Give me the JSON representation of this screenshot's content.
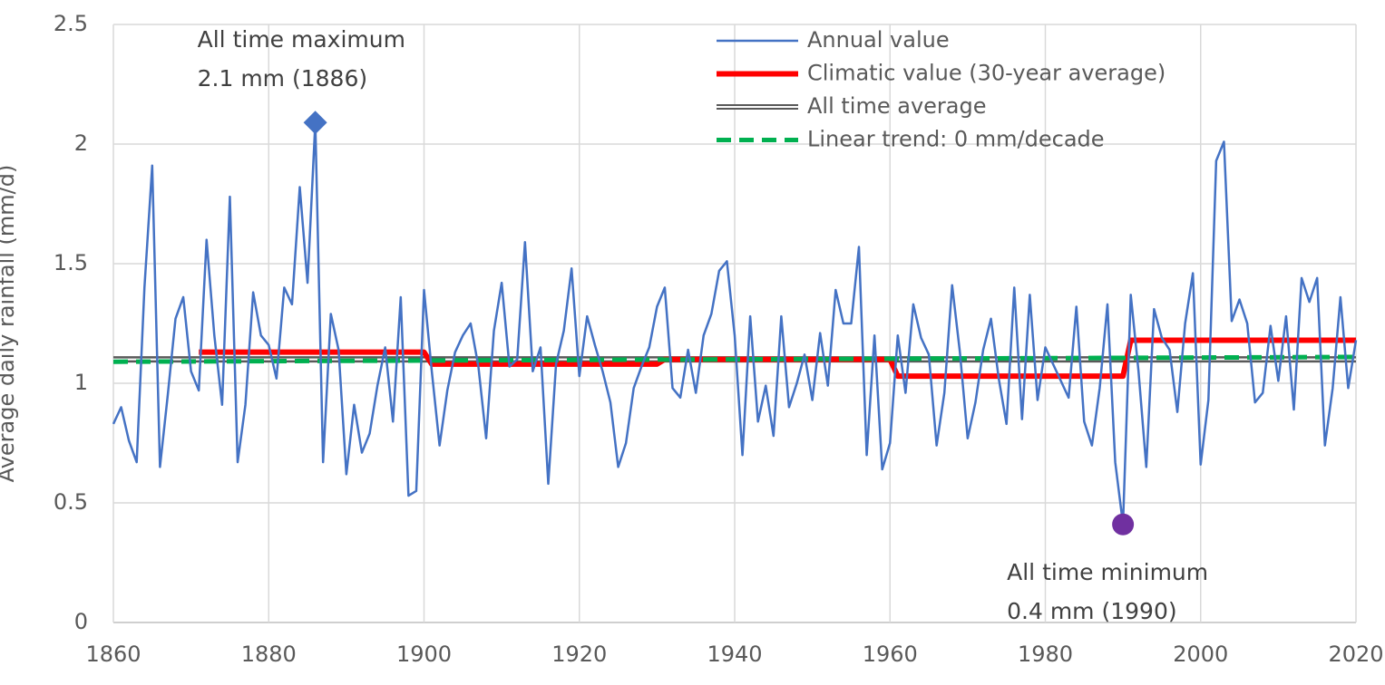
{
  "chart_data": {
    "type": "line",
    "y_label": "Average daily rainfall (mm/d)",
    "x": [
      1860,
      1861,
      1862,
      1863,
      1864,
      1865,
      1866,
      1867,
      1868,
      1869,
      1870,
      1871,
      1872,
      1873,
      1874,
      1875,
      1876,
      1877,
      1878,
      1879,
      1880,
      1881,
      1882,
      1883,
      1884,
      1885,
      1886,
      1887,
      1888,
      1889,
      1890,
      1891,
      1892,
      1893,
      1894,
      1895,
      1896,
      1897,
      1898,
      1899,
      1900,
      1901,
      1902,
      1903,
      1904,
      1905,
      1906,
      1907,
      1908,
      1909,
      1910,
      1911,
      1912,
      1913,
      1914,
      1915,
      1916,
      1917,
      1918,
      1919,
      1920,
      1921,
      1922,
      1923,
      1924,
      1925,
      1926,
      1927,
      1928,
      1929,
      1930,
      1931,
      1932,
      1933,
      1934,
      1935,
      1936,
      1937,
      1938,
      1939,
      1940,
      1941,
      1942,
      1943,
      1944,
      1945,
      1946,
      1947,
      1948,
      1949,
      1950,
      1951,
      1952,
      1953,
      1954,
      1955,
      1956,
      1957,
      1958,
      1959,
      1960,
      1961,
      1962,
      1963,
      1964,
      1965,
      1966,
      1967,
      1968,
      1969,
      1970,
      1971,
      1972,
      1973,
      1974,
      1975,
      1976,
      1977,
      1978,
      1979,
      1980,
      1981,
      1982,
      1983,
      1984,
      1985,
      1986,
      1987,
      1988,
      1989,
      1990,
      1991,
      1992,
      1993,
      1994,
      1995,
      1996,
      1997,
      1998,
      1999,
      2000,
      2001,
      2002,
      2003,
      2004,
      2005,
      2006,
      2007,
      2008,
      2009,
      2010,
      2011,
      2012,
      2013,
      2014,
      2015,
      2016,
      2017,
      2018,
      2019,
      2020
    ],
    "series": [
      {
        "name": "Annual value",
        "color": "#4472c4",
        "width": 2.5,
        "values": [
          0.83,
          0.9,
          0.76,
          0.67,
          1.4,
          1.91,
          0.65,
          0.95,
          1.27,
          1.36,
          1.05,
          0.97,
          1.6,
          1.2,
          0.91,
          1.78,
          0.67,
          0.91,
          1.38,
          1.2,
          1.16,
          1.02,
          1.4,
          1.33,
          1.82,
          1.42,
          2.09,
          0.67,
          1.29,
          1.14,
          0.62,
          0.91,
          0.71,
          0.79,
          0.99,
          1.15,
          0.84,
          1.36,
          0.53,
          0.55,
          1.39,
          1.05,
          0.74,
          0.97,
          1.13,
          1.2,
          1.25,
          1.07,
          0.77,
          1.22,
          1.42,
          1.07,
          1.1,
          1.59,
          1.05,
          1.15,
          0.58,
          1.08,
          1.22,
          1.48,
          1.03,
          1.28,
          1.16,
          1.05,
          0.92,
          0.65,
          0.75,
          0.98,
          1.07,
          1.15,
          1.32,
          1.4,
          0.98,
          0.94,
          1.14,
          0.96,
          1.2,
          1.29,
          1.47,
          1.51,
          1.2,
          0.7,
          1.28,
          0.84,
          0.99,
          0.78,
          1.28,
          0.9,
          1.0,
          1.12,
          0.93,
          1.21,
          0.99,
          1.39,
          1.25,
          1.25,
          1.57,
          0.7,
          1.2,
          0.64,
          0.75,
          1.2,
          0.96,
          1.33,
          1.19,
          1.12,
          0.74,
          0.96,
          1.41,
          1.13,
          0.77,
          0.92,
          1.14,
          1.27,
          1.02,
          0.83,
          1.4,
          0.85,
          1.37,
          0.93,
          1.15,
          1.08,
          1.01,
          0.94,
          1.32,
          0.84,
          0.74,
          0.98,
          1.33,
          0.67,
          0.41,
          1.37,
          1.05,
          0.65,
          1.31,
          1.19,
          1.14,
          0.88,
          1.25,
          1.46,
          0.66,
          0.93,
          1.93,
          2.01,
          1.26,
          1.35,
          1.25,
          0.92,
          0.96,
          1.24,
          1.01,
          1.28,
          0.89,
          1.44,
          1.34,
          1.44,
          0.74,
          0.98,
          1.36,
          0.98,
          1.18
        ]
      },
      {
        "name": "Climatic value (30-year average)",
        "color": "#ff0000",
        "width": 6,
        "x": [
          1871,
          1900,
          1901,
          1930,
          1931,
          1960,
          1961,
          1990,
          1991,
          2020
        ],
        "values": [
          1.13,
          1.13,
          1.08,
          1.08,
          1.1,
          1.1,
          1.03,
          1.03,
          1.18,
          1.18
        ]
      },
      {
        "name": "All time average",
        "color": "#595959",
        "width": 7,
        "style": "double",
        "x": [
          1860,
          2020
        ],
        "values": [
          1.1,
          1.1
        ]
      },
      {
        "name": "Linear trend: 0 mm/decade",
        "color": "#00b050",
        "width": 5,
        "style": "dashed",
        "x": [
          1860,
          2020
        ],
        "values": [
          1.09,
          1.11
        ]
      }
    ],
    "annotations": [
      {
        "text": [
          "All time maximum",
          "2.1 mm (1886)"
        ],
        "x": 1886,
        "y": 2.09,
        "marker": "diamond",
        "color": "#4472c4",
        "side": "above"
      },
      {
        "text": [
          "All time minimum",
          "0.4 mm (1990)"
        ],
        "x": 1990,
        "y": 0.41,
        "marker": "circle",
        "color": "#7030a0",
        "side": "below"
      }
    ],
    "xlim": [
      1860,
      2020
    ],
    "xticks": [
      1860,
      1880,
      1900,
      1920,
      1940,
      1960,
      1980,
      2000,
      2020
    ],
    "ylim": [
      0,
      2.5
    ],
    "yticks": [
      0,
      0.5,
      1,
      1.5,
      2,
      2.5
    ],
    "grid": true,
    "legend": "top-right"
  }
}
